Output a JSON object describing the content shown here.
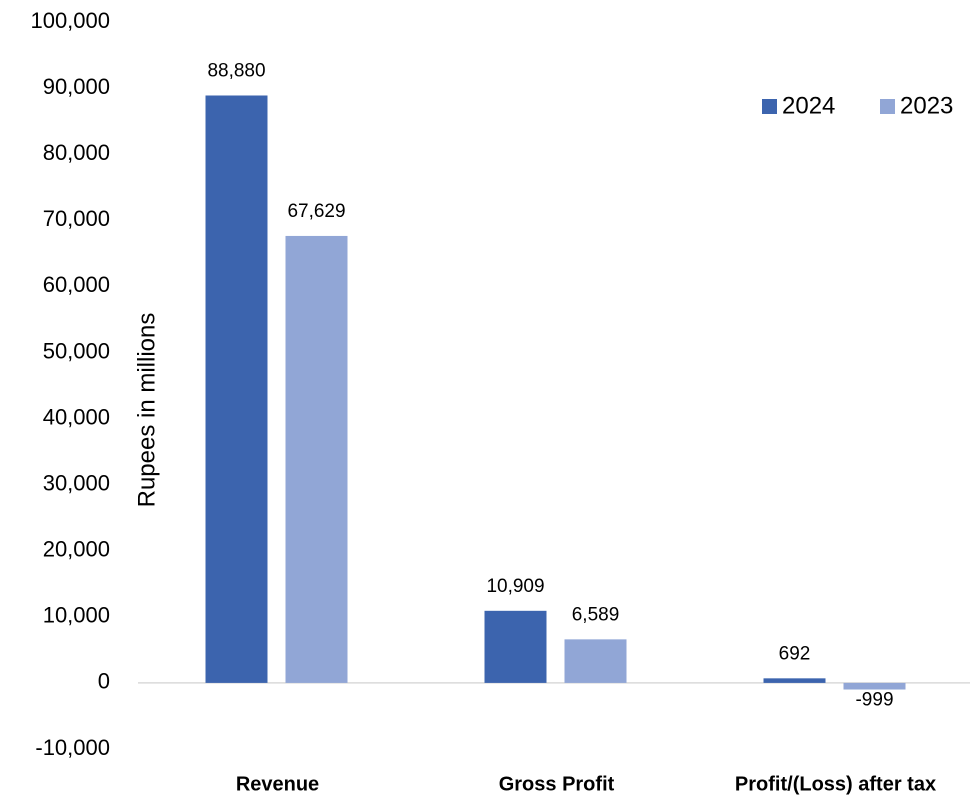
{
  "chart_data": {
    "type": "bar",
    "y_label": "Rupees in millions",
    "categories": [
      "Revenue",
      "Gross Profit",
      "Profit/(Loss) after tax"
    ],
    "series": [
      {
        "name": "2024",
        "color": "#3c64ae",
        "values": [
          88880,
          10909,
          692
        ],
        "value_labels": [
          "88,880",
          "10,909",
          "692"
        ]
      },
      {
        "name": "2023",
        "color": "#91a6d6",
        "values": [
          67629,
          6589,
          -999
        ],
        "value_labels": [
          "67,629",
          "6,589",
          "-999"
        ]
      }
    ],
    "ylim": [
      -10000,
      100000
    ],
    "yticks": [
      {
        "value": -10000,
        "label": "-10,000"
      },
      0,
      {
        "value": 10000,
        "label": "10,000"
      },
      {
        "value": 20000,
        "label": "20,000"
      },
      {
        "value": 30000,
        "label": "30,000"
      },
      {
        "value": 40000,
        "label": "40,000"
      },
      {
        "value": 50000,
        "label": "50,000"
      },
      {
        "value": 60000,
        "label": "60,000"
      },
      {
        "value": 70000,
        "label": "70,000"
      },
      {
        "value": 80000,
        "label": "80,000"
      },
      {
        "value": 90000,
        "label": "90,000"
      },
      {
        "value": 100000,
        "label": "100,000"
      }
    ],
    "grid": false,
    "legend": "top-right"
  }
}
